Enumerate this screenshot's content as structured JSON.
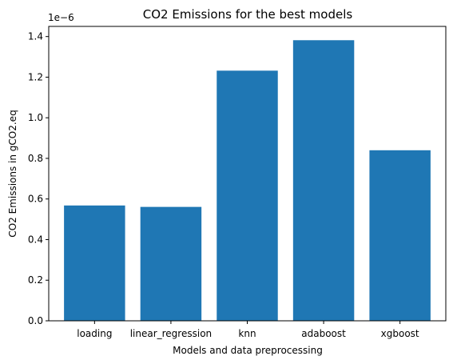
{
  "chart_data": {
    "type": "bar",
    "title": "CO2 Emissions for the best models",
    "xlabel": "Models and data preprocessing",
    "ylabel": "CO2 Emissions in gCO2.eq",
    "y_offset_label": "1e−6",
    "categories": [
      "loading",
      "linear_regression",
      "knn",
      "adaboost",
      "xgboost"
    ],
    "values": [
      0.568,
      0.561,
      1.232,
      1.382,
      0.84
    ],
    "value_scale": 1e-06,
    "ylim": [
      0,
      1.45
    ],
    "yticks": [
      "0.0",
      "0.2",
      "0.4",
      "0.6",
      "0.8",
      "1.0",
      "1.2",
      "1.4"
    ],
    "grid": false,
    "legend": "none",
    "bar_color": "#1f77b4"
  }
}
